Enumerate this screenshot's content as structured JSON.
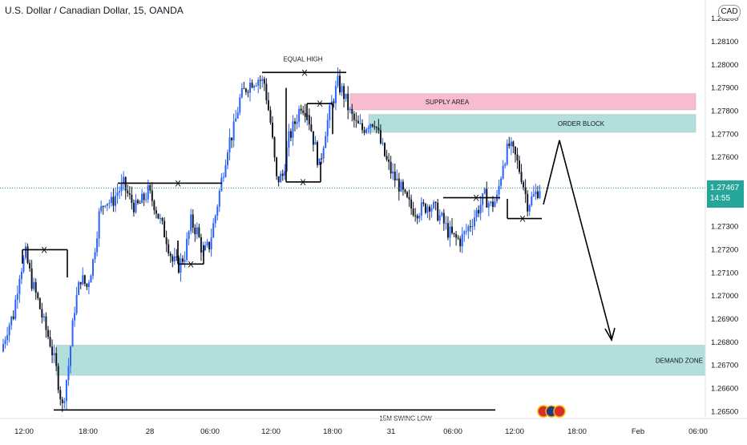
{
  "header": {
    "title": "U.S. Dollar / Canadian Dollar, 15, OANDA",
    "currency": "CAD"
  },
  "colors": {
    "up": "#2962ff",
    "down": "#131722",
    "supply": "#f8bbd0",
    "order_block": "#b2dfdb",
    "demand": "#b2dfdb",
    "last_price_bg": "#26a69a",
    "axis_text": "#131722"
  },
  "last_price": {
    "value": "1.27467",
    "countdown": "14:55",
    "numeric": 1.27467
  },
  "chart_data": {
    "type": "candlestick",
    "title": "U.S. Dollar / Canadian Dollar, 15, OANDA",
    "ylim": [
      1.2647,
      1.2828
    ],
    "y_ticks": [
      "1.28200",
      "1.28100",
      "1.28000",
      "1.27900",
      "1.27800",
      "1.27700",
      "1.27600",
      "1.27500",
      "1.27400",
      "1.27300",
      "1.27200",
      "1.27100",
      "1.27000",
      "1.26900",
      "1.26800",
      "1.26700",
      "1.26600",
      "1.26500"
    ],
    "x_ticks": [
      "12:00",
      "18:00",
      "28",
      "06:00",
      "12:00",
      "18:00",
      "31",
      "06:00",
      "12:00",
      "18:00",
      "Feb",
      "06:00"
    ],
    "price_path": [
      1.2676,
      1.2686,
      1.2692,
      1.271,
      1.2718,
      1.2706,
      1.2698,
      1.2688,
      1.268,
      1.2668,
      1.2652,
      1.267,
      1.2695,
      1.2708,
      1.2704,
      1.2715,
      1.2735,
      1.2742,
      1.274,
      1.2745,
      1.2748,
      1.2742,
      1.2738,
      1.2741,
      1.2745,
      1.274,
      1.2732,
      1.2725,
      1.2715,
      1.2713,
      1.2718,
      1.2732,
      1.2728,
      1.2718,
      1.2722,
      1.2735,
      1.275,
      1.2765,
      1.2772,
      1.2785,
      1.279,
      1.2793,
      1.2794,
      1.2792,
      1.2775,
      1.275,
      1.2752,
      1.2768,
      1.2775,
      1.2783,
      1.278,
      1.2768,
      1.2756,
      1.2772,
      1.2783,
      1.2792,
      1.2787,
      1.2779,
      1.2774,
      1.2772,
      1.2775,
      1.2776,
      1.2766,
      1.2758,
      1.2752,
      1.2748,
      1.2742,
      1.2738,
      1.2737,
      1.2738,
      1.274,
      1.2737,
      1.2733,
      1.2728,
      1.2725,
      1.2724,
      1.2728,
      1.2733,
      1.2738,
      1.2743,
      1.2739,
      1.2742,
      1.2758,
      1.2765,
      1.276,
      1.2752,
      1.274,
      1.2743,
      1.2747
    ],
    "annotations": {
      "supply_area": {
        "label": "SUPPLY AREA",
        "from": 1.27805,
        "to": 1.27875
      },
      "order_block": {
        "label": "ORDER BLOCK",
        "from": 1.27708,
        "to": 1.27785
      },
      "demand_zone": {
        "label": "DEMAND ZONE",
        "from": 1.26657,
        "to": 1.26787
      },
      "equal_high": {
        "label": "EQUAL HIGH",
        "price": 1.27967
      },
      "swing_low": {
        "label": "15M SWING LOW",
        "price": 1.26507
      },
      "x_markers": [
        "X",
        "X",
        "X",
        "X",
        "X",
        "X",
        "X",
        "X",
        "X"
      ]
    }
  }
}
